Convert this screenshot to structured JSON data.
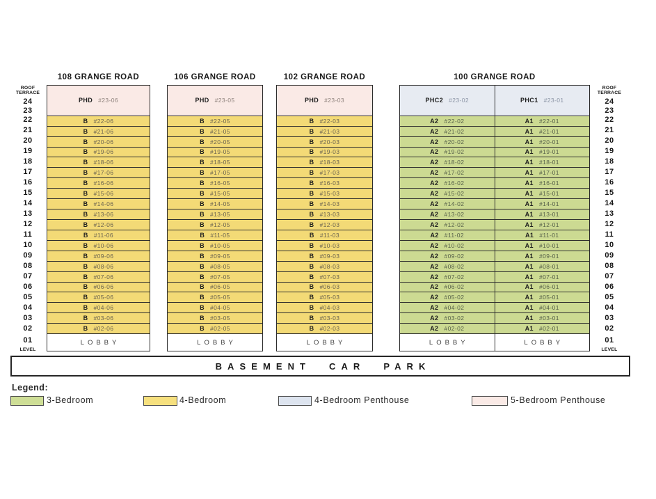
{
  "axis": {
    "roof_line1": "ROOF",
    "roof_line2": "TERRACE",
    "floors": [
      "24",
      "23",
      "22",
      "21",
      "20",
      "19",
      "18",
      "17",
      "16",
      "15",
      "14",
      "13",
      "12",
      "11",
      "10",
      "09",
      "08",
      "07",
      "06",
      "05",
      "04",
      "03",
      "02"
    ],
    "ground": "01",
    "ground_label": "LEVEL"
  },
  "towers": [
    {
      "name": "108 GRANGE ROAD",
      "unit_color": "#f3da76",
      "penthouse_color": "#faeae6",
      "columns": [
        {
          "type": "B",
          "penthouse_type": "PHD",
          "penthouse_unit": "#23-06",
          "units": [
            "#22-06",
            "#21-06",
            "#20-06",
            "#19-06",
            "#18-06",
            "#17-06",
            "#16-06",
            "#15-06",
            "#14-06",
            "#13-06",
            "#12-06",
            "#11-06",
            "#10-06",
            "#09-06",
            "#08-06",
            "#07-06",
            "#06-06",
            "#05-06",
            "#04-06",
            "#03-06",
            "#02-06"
          ],
          "lobby": "LOBBY"
        }
      ]
    },
    {
      "name": "106 GRANGE ROAD",
      "unit_color": "#f3da76",
      "penthouse_color": "#faeae6",
      "columns": [
        {
          "type": "B",
          "penthouse_type": "PHD",
          "penthouse_unit": "#23-05",
          "units": [
            "#22-05",
            "#21-05",
            "#20-05",
            "#19-05",
            "#18-05",
            "#17-05",
            "#16-05",
            "#15-05",
            "#14-05",
            "#13-05",
            "#12-05",
            "#11-05",
            "#10-05",
            "#09-05",
            "#08-05",
            "#07-05",
            "#06-05",
            "#05-05",
            "#04-05",
            "#03-05",
            "#02-05"
          ],
          "lobby": "LOBBY"
        }
      ]
    },
    {
      "name": "102 GRANGE ROAD",
      "unit_color": "#f3da76",
      "penthouse_color": "#faeae6",
      "columns": [
        {
          "type": "B",
          "penthouse_type": "PHD",
          "penthouse_unit": "#23-03",
          "units": [
            "#22-03",
            "#21-03",
            "#20-03",
            "#19-03",
            "#18-03",
            "#17-03",
            "#16-03",
            "#15-03",
            "#14-03",
            "#13-03",
            "#12-03",
            "#11-03",
            "#10-03",
            "#09-03",
            "#08-03",
            "#07-03",
            "#06-03",
            "#05-03",
            "#04-03",
            "#03-03",
            "#02-03"
          ],
          "lobby": "LOBBY"
        }
      ]
    },
    {
      "name": "100 GRANGE ROAD",
      "unit_color": "#ccda92",
      "penthouse_color": "#e7ebf2",
      "columns": [
        {
          "type": "A2",
          "penthouse_type": "PHC2",
          "penthouse_unit": "#23-02",
          "units": [
            "#22-02",
            "#21-02",
            "#20-02",
            "#19-02",
            "#18-02",
            "#17-02",
            "#16-02",
            "#15-02",
            "#14-02",
            "#13-02",
            "#12-02",
            "#11-02",
            "#10-02",
            "#09-02",
            "#08-02",
            "#07-02",
            "#06-02",
            "#05-02",
            "#04-02",
            "#03-02",
            "#02-02"
          ],
          "lobby": "LOBBY"
        },
        {
          "type": "A1",
          "penthouse_type": "PHC1",
          "penthouse_unit": "#23-01",
          "units": [
            "#22-01",
            "#21-01",
            "#20-01",
            "#19-01",
            "#18-01",
            "#17-01",
            "#16-01",
            "#15-01",
            "#14-01",
            "#13-01",
            "#12-01",
            "#11-01",
            "#10-01",
            "#09-01",
            "#08-01",
            "#07-01",
            "#06-01",
            "#05-01",
            "#04-01",
            "#03-01",
            "#02-01"
          ],
          "lobby": "LOBBY"
        }
      ]
    }
  ],
  "basement": {
    "label": "BASEMENT CAR PARK"
  },
  "legend": {
    "title": "Legend:",
    "items": [
      {
        "label": "3-Bedroom",
        "color": "#cede96"
      },
      {
        "label": "4-Bedroom",
        "color": "#f6e07e"
      },
      {
        "label": "4-Bedroom Penthouse",
        "color": "#dde4ef"
      },
      {
        "label": "5-Bedroom Penthouse",
        "color": "#faeae6"
      }
    ]
  }
}
